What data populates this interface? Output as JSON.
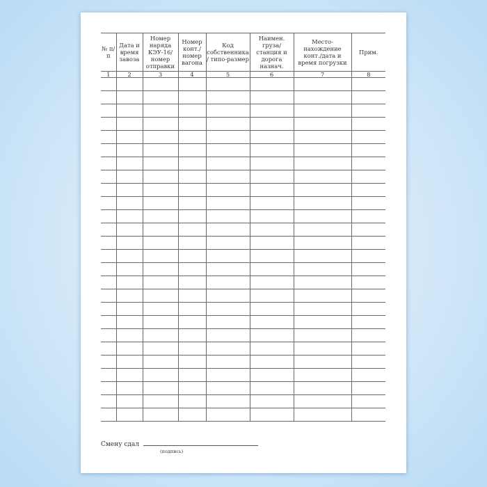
{
  "table": {
    "headers": [
      "№ п/п",
      "Дата и время завоза",
      "Номер наряда КЭУ-16/ номер отправки",
      "Номер конт./ номер вагона",
      "Код собственника / типо-размер",
      "Наимен. груза/ станция и дорога назнач.",
      "Место-нахождение конт./дата и время погрузки",
      "Прим."
    ],
    "column_numbers": [
      "1",
      "2",
      "3",
      "4",
      "5",
      "6",
      "7",
      "8"
    ],
    "empty_rows": 26
  },
  "footer": {
    "label": "Смену сдал",
    "signature_caption": "(подпись)"
  }
}
